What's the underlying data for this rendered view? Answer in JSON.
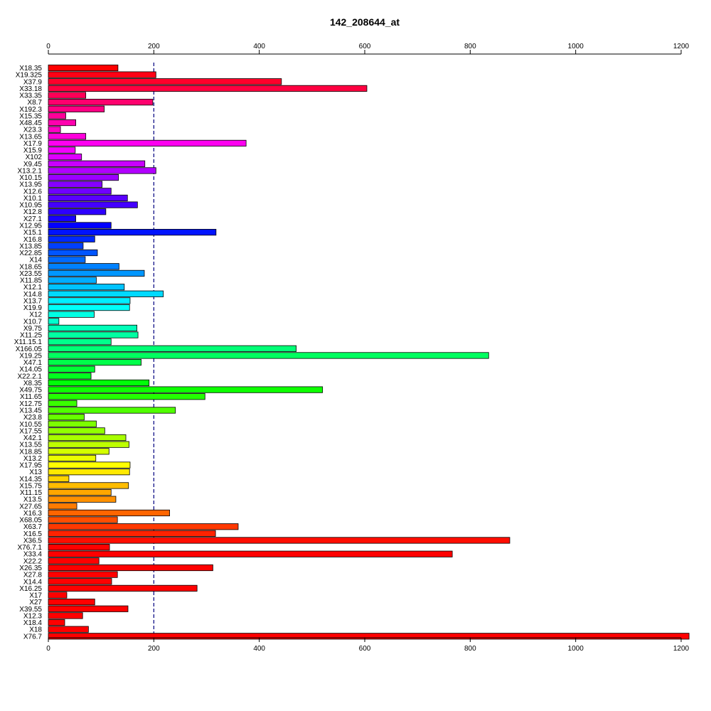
{
  "chart_data": {
    "type": "bar",
    "orientation": "horizontal",
    "title": "142_208644_at",
    "xlabel": "",
    "ylabel": "",
    "xlim": [
      0,
      1200
    ],
    "xticks": [
      0,
      200,
      400,
      600,
      800,
      1000,
      1200
    ],
    "xtick_labels": [
      "0",
      "200",
      "400",
      "600",
      "800",
      "1000",
      "1200"
    ],
    "axes": "top-and-bottom",
    "grid": false,
    "reference_line": {
      "x": 200,
      "style": "dashed",
      "color": "#00007f"
    },
    "color_scheme": "rainbow",
    "categories": [
      "X18.35",
      "X19.325",
      "X37.9",
      "X33.18",
      "X33.35",
      "X8.7",
      "X192.3",
      "X15.35",
      "X48.45",
      "X23.3",
      "X13.65",
      "X17.9",
      "X15.9",
      "X102",
      "X9.45",
      "X13.2.1",
      "X10.15",
      "X13.95",
      "X12.6",
      "X10.1",
      "X10.95",
      "X12.8",
      "X27.1",
      "X12.95",
      "X15.1",
      "X16.8",
      "X13.85",
      "X22.85",
      "X14",
      "X18.65",
      "X23.55",
      "X11.85",
      "X12.1",
      "X14.8",
      "X13.7",
      "X19.9",
      "X12",
      "X10.7",
      "X9.75",
      "X11.25",
      "X11.15.1",
      "X166.05",
      "X19.25",
      "X47.1",
      "X14.05",
      "X22.2.1",
      "X8.35",
      "X49.75",
      "X11.65",
      "X12.75",
      "X13.45",
      "X23.8",
      "X10.55",
      "X17.55",
      "X42.1",
      "X13.55",
      "X18.85",
      "X13.2",
      "X17.95",
      "X13",
      "X14.35",
      "X15.75",
      "X11.15",
      "X13.5",
      "X27.65",
      "X16.3",
      "X68.05",
      "X63.7",
      "X16.5",
      "X36.5",
      "X76.7.1",
      "X33.4",
      "X22.2",
      "X26.35",
      "X27.8",
      "X14.4",
      "X16.25",
      "X17",
      "X27",
      "X39.55",
      "X12.3",
      "X18.4",
      "X18",
      "X76.7"
    ],
    "values": [
      132,
      204,
      442,
      604,
      71,
      198,
      106,
      33,
      52,
      23,
      71,
      375,
      51,
      63,
      183,
      204,
      133,
      102,
      119,
      150,
      169,
      109,
      52,
      119,
      318,
      88,
      66,
      93,
      70,
      134,
      182,
      91,
      144,
      218,
      155,
      154,
      87,
      20,
      168,
      170,
      119,
      470,
      835,
      176,
      88,
      81,
      191,
      520,
      297,
      54,
      241,
      68,
      91,
      107,
      147,
      153,
      115,
      90,
      155,
      154,
      39,
      152,
      119,
      128,
      54,
      230,
      131,
      360,
      317,
      875,
      116,
      766,
      96,
      312,
      131,
      120,
      282,
      35,
      88,
      151,
      65,
      31,
      76,
      1215
    ],
    "colors": [
      "#ff0000",
      "#ff0015",
      "#ff002b",
      "#ff0041",
      "#ff0057",
      "#ff006d",
      "#ff0083",
      "#ff0099",
      "#ff00af",
      "#ff00c5",
      "#ff00db",
      "#ff00f1",
      "#f400ff",
      "#de00ff",
      "#c800ff",
      "#b200ff",
      "#9c00ff",
      "#8600ff",
      "#7000ff",
      "#5a00ff",
      "#4400ff",
      "#2e00ff",
      "#1800ff",
      "#0200ff",
      "#0013ff",
      "#0029ff",
      "#003fff",
      "#0055ff",
      "#006bff",
      "#0081ff",
      "#0097ff",
      "#00adff",
      "#00c3ff",
      "#00d9ff",
      "#00efff",
      "#00fffa",
      "#00ffe4",
      "#00ffce",
      "#00ffb8",
      "#00ffa2",
      "#00ff8c",
      "#00ff76",
      "#00ff60",
      "#00ff4a",
      "#00ff34",
      "#00ff1e",
      "#00ff08",
      "#0eff00",
      "#24ff00",
      "#3aff00",
      "#50ff00",
      "#66ff00",
      "#7cff00",
      "#92ff00",
      "#a8ff00",
      "#beff00",
      "#d4ff00",
      "#eaff00",
      "#ffff00",
      "#ffe900",
      "#ffd300",
      "#ffbd00",
      "#ffa700",
      "#ff9100",
      "#ff7b00",
      "#ff6500",
      "#ff4f00",
      "#ff3900",
      "#ff2300",
      "#ff0d00",
      "#ff0000",
      "#ff0000",
      "#ff0000",
      "#ff0000",
      "#ff0000",
      "#ff0000",
      "#ff0000",
      "#ff0000",
      "#ff0000",
      "#ff0000",
      "#ff0000",
      "#ff0000",
      "#ff0000",
      "#ff0000"
    ]
  }
}
